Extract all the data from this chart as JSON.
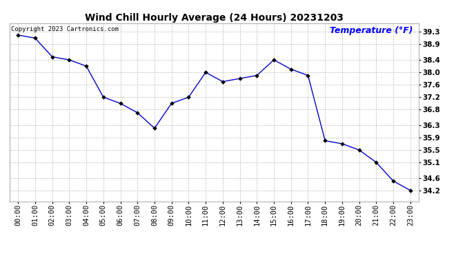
{
  "title": "Wind Chill Hourly Average (24 Hours) 20231203",
  "temp_label": "Temperature (°F)",
  "copyright_text": "Copyright 2023 Cartronics.com",
  "line_color": "#0000cc",
  "marker_color": "#000000",
  "background_color": "#ffffff",
  "grid_color": "#bbbbbb",
  "hours": [
    "00:00",
    "01:00",
    "02:00",
    "03:00",
    "04:00",
    "05:00",
    "06:00",
    "07:00",
    "08:00",
    "09:00",
    "10:00",
    "11:00",
    "12:00",
    "13:00",
    "14:00",
    "15:00",
    "16:00",
    "17:00",
    "18:00",
    "19:00",
    "20:00",
    "21:00",
    "22:00",
    "23:00"
  ],
  "values": [
    39.2,
    39.1,
    38.5,
    38.4,
    38.2,
    37.2,
    37.0,
    36.7,
    36.2,
    37.0,
    37.2,
    38.0,
    37.7,
    37.8,
    37.9,
    38.4,
    38.1,
    37.9,
    35.8,
    35.7,
    35.5,
    35.1,
    34.5,
    34.2
  ],
  "yticks": [
    39.3,
    38.9,
    38.4,
    38.0,
    37.6,
    37.2,
    36.8,
    36.3,
    35.9,
    35.5,
    35.1,
    34.6,
    34.2
  ],
  "ytick_labels": [
    "39.3",
    "38.9",
    "38.4",
    "38.0",
    "37.6",
    "37.2",
    "36.8",
    "36.3",
    "35.9",
    "35.5",
    "35.1",
    "34.6",
    "34.2"
  ],
  "ylim_min": 33.85,
  "ylim_max": 39.58,
  "title_fontsize": 10,
  "tick_fontsize": 7.5,
  "copyright_fontsize": 6.5,
  "temp_label_fontsize": 9
}
